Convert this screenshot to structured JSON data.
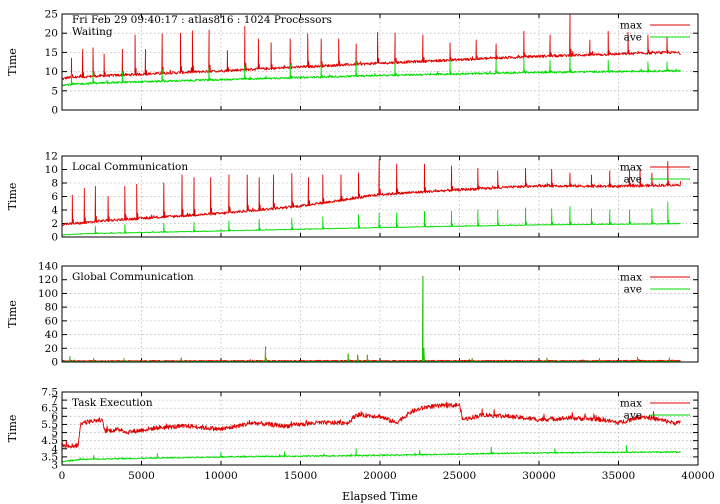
{
  "chart_data": {
    "type": "line",
    "header": "Fri Feb 29 09:40:17 : atlas816 : 1024 Processors",
    "xlabel": "Elapsed Time",
    "xlim": [
      0,
      40000
    ],
    "xticks": [
      0,
      5000,
      10000,
      15000,
      20000,
      25000,
      30000,
      35000,
      40000
    ],
    "panels": [
      {
        "title": "Waiting",
        "ylabel": "Time",
        "ylim": [
          0,
          25
        ],
        "yticks": [
          "0",
          "5",
          "10",
          "15",
          "20",
          "25"
        ],
        "grid": true,
        "legend_position": "top-right",
        "series": [
          {
            "name": "max",
            "color": "#e00000",
            "base_x": [
              0,
              300,
              2000,
              10000,
              20000,
              30000,
              38500,
              40000
            ],
            "base_y": [
              8.0,
              8.4,
              8.8,
              10.2,
              12.2,
              14.0,
              15.0,
              14.2
            ],
            "noise": 0.35,
            "spike_x": [
              600,
              1300,
              1950,
              2650,
              3800,
              4600,
              5250,
              6300,
              7450,
              8200,
              9250,
              10400,
              11500,
              12350,
              13150,
              14350,
              15450,
              16300,
              17400,
              18500,
              19850,
              20950,
              22700,
              24400,
              26050,
              27300,
              29050,
              30700,
              31950,
              33200,
              34350,
              35600,
              36850,
              38050
            ],
            "spike_y": [
              13.5,
              15.8,
              16.2,
              14.6,
              15.8,
              19.5,
              15.8,
              19.8,
              20.0,
              20.6,
              20.8,
              15.5,
              21.8,
              18.5,
              17.5,
              18.5,
              19.8,
              18.5,
              18.5,
              17.2,
              20.2,
              20.0,
              19.5,
              17.5,
              18.2,
              17.2,
              20.5,
              19.5,
              25.0,
              18.2,
              20.5,
              20.2,
              19.5,
              19.0
            ]
          },
          {
            "name": "ave",
            "color": "#00dd00",
            "base_x": [
              0,
              300,
              2000,
              10000,
              20000,
              30000,
              38500,
              40000
            ],
            "base_y": [
              6.5,
              6.6,
              7.0,
              7.9,
              9.0,
              9.8,
              10.2,
              10.0
            ],
            "noise": 0.25,
            "spike_x": [
              600,
              1950,
              3800,
              6300,
              9250,
              11500,
              14350,
              16300,
              18500,
              20950,
              24400,
              27300,
              29050,
              30700,
              31950,
              34350,
              36850,
              38050
            ],
            "spike_y": [
              9.5,
              9.8,
              10.0,
              10.5,
              11.0,
              11.5,
              12.0,
              12.0,
              12.5,
              12.5,
              13.0,
              13.0,
              13.5,
              13.0,
              14.0,
              13.0,
              12.5,
              12.5
            ]
          }
        ]
      },
      {
        "title": "Local Communication",
        "ylabel": "Time",
        "ylim": [
          0,
          12
        ],
        "yticks": [
          "0",
          "2",
          "4",
          "6",
          "8",
          "10",
          "12"
        ],
        "grid": true,
        "legend_position": "top-right",
        "series": [
          {
            "name": "max",
            "color": "#e00000",
            "base_x": [
              0,
              1500,
              2500,
              10000,
              15000,
              18000,
              20000,
              25000,
              30000,
              35000,
              40000
            ],
            "base_y": [
              1.9,
              2.1,
              2.4,
              3.5,
              4.6,
              5.6,
              6.3,
              7.0,
              7.6,
              7.5,
              7.8
            ],
            "noise": 0.2,
            "spike_x": [
              650,
              1400,
              2100,
              2900,
              3950,
              4700,
              6400,
              7550,
              8300,
              9350,
              10500,
              11650,
              12400,
              13300,
              14450,
              15500,
              16400,
              17550,
              18650,
              19950,
              21050,
              22800,
              24500,
              26150,
              27400,
              29150,
              30800,
              31950,
              33300,
              34450,
              35700,
              36350,
              37100,
              38100
            ],
            "spike_y": [
              6.2,
              7.2,
              7.5,
              6.0,
              7.5,
              7.8,
              8.0,
              9.2,
              8.8,
              8.8,
              9.2,
              9.2,
              8.8,
              9.2,
              9.4,
              8.8,
              9.2,
              9.2,
              9.5,
              11.5,
              10.8,
              10.8,
              10.5,
              10.2,
              9.8,
              10.2,
              10.0,
              9.5,
              9.2,
              9.8,
              10.0,
              10.2,
              9.5,
              11.2
            ]
          },
          {
            "name": "ave",
            "color": "#00dd00",
            "base_x": [
              0,
              1500,
              10000,
              20000,
              30000,
              40000
            ],
            "base_y": [
              0.3,
              0.5,
              0.9,
              1.4,
              1.8,
              2.0
            ],
            "noise": 0.05,
            "spike_x": [
              2100,
              3950,
              6400,
              8300,
              10500,
              12400,
              14450,
              16400,
              18650,
              19950,
              21050,
              22800,
              24500,
              26150,
              27400,
              29150,
              30800,
              31950,
              33300,
              34450,
              35700,
              37100,
              38100
            ],
            "spike_y": [
              1.6,
              1.8,
              2.0,
              2.2,
              2.4,
              2.6,
              2.8,
              3.0,
              3.3,
              3.5,
              3.6,
              3.8,
              3.8,
              4.0,
              4.0,
              4.3,
              4.2,
              4.5,
              4.2,
              4.0,
              4.0,
              4.2,
              5.2
            ]
          }
        ]
      },
      {
        "title": "Global Communication",
        "ylabel": "Time",
        "ylim": [
          0,
          140
        ],
        "yticks": [
          "0",
          "20",
          "40",
          "60",
          "80",
          "100",
          "120",
          "140"
        ],
        "grid": true,
        "legend_position": "top-right",
        "series": [
          {
            "name": "max",
            "color": "#e00000",
            "base_x": [
              0,
              40000
            ],
            "base_y": [
              1.5,
              1.8
            ],
            "noise": 0.8,
            "spike_x": [
              500,
              2000,
              3900,
              7500,
              12800,
              18000,
              18600,
              19200,
              22700,
              25800,
              30500,
              33800,
              36200,
              38200
            ],
            "spike_y": [
              8,
              5,
              5,
              6,
              22,
              12,
              10,
              10,
              125,
              5,
              6,
              5,
              7,
              6
            ]
          },
          {
            "name": "ave",
            "color": "#00dd00",
            "base_x": [
              0,
              40000
            ],
            "base_y": [
              0.6,
              0.8
            ],
            "noise": 0.3,
            "spike_x": [
              500,
              2000,
              3900,
              7500,
              12800,
              18000,
              18600,
              19200,
              22700,
              25800,
              30500,
              33800,
              36200,
              38200
            ],
            "spike_y": [
              7,
              4,
              4,
              5,
              20,
              11,
              9,
              9,
              124,
              4,
              5,
              4,
              6,
              5
            ]
          }
        ]
      },
      {
        "title": "Task Execution",
        "ylabel": "Time",
        "ylim": [
          3,
          7.5
        ],
        "yticks": [
          "3",
          "3.5",
          "4",
          "4.5",
          "5",
          "5.5",
          "6",
          "6.5",
          "7",
          "7.5"
        ],
        "grid": true,
        "legend_position": "top-right",
        "series": [
          {
            "name": "max",
            "color": "#e00000",
            "base_x": [
              0,
              1000,
              1200,
              2500,
              2700,
              3800,
              4000,
              6000,
              8000,
              10000,
              12000,
              14000,
              16000,
              18000,
              18500,
              20000,
              21000,
              22000,
              23000,
              25000,
              25200,
              26500,
              28000,
              30000,
              32000,
              34000,
              35000,
              36500,
              38500
            ],
            "base_y": [
              4.2,
              4.2,
              5.6,
              5.8,
              5.1,
              5.2,
              5.0,
              5.3,
              5.4,
              5.2,
              5.6,
              5.4,
              5.6,
              5.6,
              6.1,
              6.0,
              5.6,
              6.3,
              6.6,
              6.7,
              5.8,
              6.1,
              6.0,
              5.8,
              5.9,
              5.8,
              5.6,
              6.0,
              5.6
            ],
            "noise": 0.14,
            "spike_x": [],
            "spike_y": []
          },
          {
            "name": "ave",
            "color": "#00dd00",
            "base_x": [
              0,
              1200,
              10000,
              20000,
              30000,
              38500
            ],
            "base_y": [
              3.2,
              3.35,
              3.5,
              3.6,
              3.75,
              3.8
            ],
            "noise": 0.04,
            "spike_x": [
              2000,
              6000,
              10000,
              14000,
              18500,
              22500,
              27000,
              31000,
              35500
            ],
            "spike_y": [
              3.6,
              3.7,
              3.8,
              3.8,
              4.0,
              3.9,
              4.1,
              4.0,
              4.2
            ]
          }
        ]
      }
    ]
  }
}
